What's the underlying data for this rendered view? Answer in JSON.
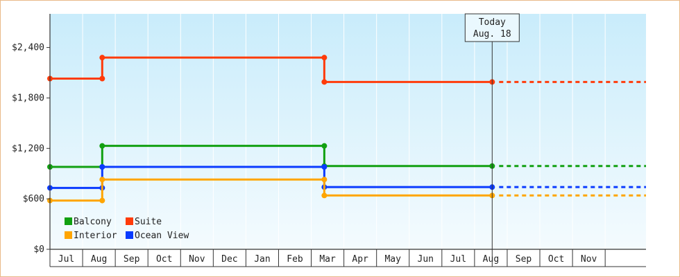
{
  "chart_data": {
    "type": "line",
    "subtype": "step",
    "ylim": [
      0,
      2800
    ],
    "y_ticks": [
      {
        "value": 0,
        "label": "$0"
      },
      {
        "value": 600,
        "label": "$600"
      },
      {
        "value": 1200,
        "label": "$1,200"
      },
      {
        "value": 1800,
        "label": "$1,800"
      },
      {
        "value": 2400,
        "label": "$2,400"
      }
    ],
    "x_range": [
      0,
      18.25
    ],
    "x_months": [
      "Jul",
      "Aug",
      "Sep",
      "Oct",
      "Nov",
      "Dec",
      "Jan",
      "Feb",
      "Mar",
      "Apr",
      "May",
      "Jun",
      "Jul",
      "Aug",
      "Sep",
      "Oct",
      "Nov"
    ],
    "today": {
      "x": 13.54,
      "line1": "Today",
      "line2": "Aug. 18"
    },
    "projection_end": 18.25,
    "legend": {
      "placement": "bottom-left",
      "items": [
        {
          "label": "Balcony",
          "color": "#11a011"
        },
        {
          "label": "Suite",
          "color": "#ff3b0a"
        },
        {
          "label": "Interior",
          "color": "#ffa500"
        },
        {
          "label": "Ocean View",
          "color": "#0a3bff"
        }
      ]
    },
    "series": [
      {
        "name": "Suite",
        "color": "#ff3b0a",
        "points": [
          [
            0,
            2030
          ],
          [
            1.6,
            2030
          ],
          [
            1.6,
            2280
          ],
          [
            8.4,
            2280
          ],
          [
            8.4,
            1990
          ],
          [
            13.54,
            1990
          ]
        ]
      },
      {
        "name": "Balcony",
        "color": "#11a011",
        "points": [
          [
            0,
            980
          ],
          [
            1.6,
            980
          ],
          [
            1.6,
            1230
          ],
          [
            8.4,
            1230
          ],
          [
            8.4,
            990
          ],
          [
            13.54,
            990
          ]
        ]
      },
      {
        "name": "Ocean View",
        "color": "#0a3bff",
        "points": [
          [
            0,
            730
          ],
          [
            1.6,
            730
          ],
          [
            1.6,
            980
          ],
          [
            8.4,
            980
          ],
          [
            8.4,
            740
          ],
          [
            13.54,
            740
          ]
        ]
      },
      {
        "name": "Interior",
        "color": "#ffa500",
        "points": [
          [
            0,
            580
          ],
          [
            1.6,
            580
          ],
          [
            1.6,
            830
          ],
          [
            8.4,
            830
          ],
          [
            8.4,
            640
          ],
          [
            13.54,
            640
          ]
        ]
      }
    ]
  }
}
